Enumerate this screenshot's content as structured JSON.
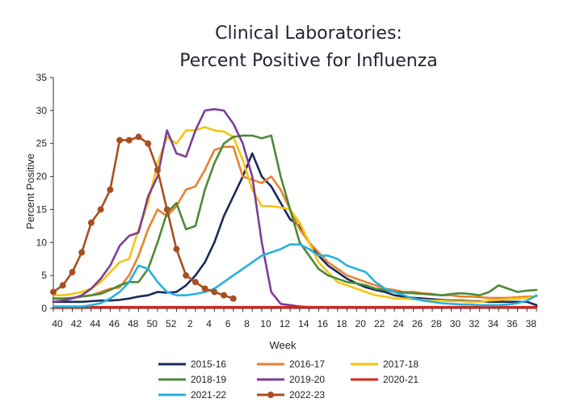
{
  "chart_data": {
    "type": "line",
    "title": [
      "Clinical Laboratories:",
      "Percent Positive for Influenza"
    ],
    "xlabel": "Week",
    "ylabel": "Percent Positive",
    "ylim": [
      0,
      35
    ],
    "yticks": [
      0,
      5,
      10,
      15,
      20,
      25,
      30,
      35
    ],
    "xtick_labels": [
      "40",
      "42",
      "44",
      "46",
      "48",
      "50",
      "52",
      "2",
      "4",
      "6",
      "8",
      "10",
      "12",
      "14",
      "16",
      "18",
      "20",
      "22",
      "24",
      "26",
      "28",
      "30",
      "32",
      "34",
      "36",
      "38"
    ],
    "grid": false,
    "legend_position": "bottom",
    "series": [
      {
        "name": "2015-16",
        "color": "#1a2a5c",
        "marker": false,
        "values": [
          1,
          1,
          1,
          1,
          1.1,
          1.2,
          1.2,
          1.3,
          1.5,
          1.8,
          2,
          2.5,
          2.4,
          2.5,
          3.5,
          5,
          7,
          10,
          14,
          17,
          20,
          23.5,
          20,
          18.5,
          16,
          13.5,
          12.5,
          10,
          8,
          6.5,
          5.5,
          4.5,
          3.8,
          3.2,
          2.8,
          2.5,
          2,
          1.8,
          1.6,
          1.5,
          1.4,
          1.3,
          1.2,
          1.2,
          1.1,
          1.1,
          1,
          1,
          1,
          1,
          1,
          0.5
        ]
      },
      {
        "name": "2016-17",
        "color": "#e9812f",
        "marker": false,
        "values": [
          1.5,
          1.5,
          1.6,
          1.8,
          2,
          2.5,
          3,
          3.2,
          5,
          8,
          12,
          15,
          14,
          15.5,
          18,
          18.5,
          21,
          24,
          24.5,
          24.5,
          20,
          19.5,
          19,
          20,
          18,
          15,
          12,
          10,
          8.5,
          7,
          6,
          5,
          4.5,
          4,
          3.5,
          3,
          2.8,
          2.5,
          2.5,
          2.3,
          2.2,
          2,
          2,
          1.8,
          1.8,
          1.7,
          1.6,
          1.6,
          1.6,
          1.7,
          1.8,
          1.8
        ]
      },
      {
        "name": "2017-18",
        "color": "#f5c411",
        "marker": false,
        "values": [
          2,
          2,
          2.2,
          2.5,
          3,
          4,
          5.5,
          7,
          7.5,
          12,
          16,
          22,
          26,
          25,
          27,
          27,
          27.5,
          27,
          26.8,
          26,
          22.5,
          18,
          15.5,
          15.5,
          15.3,
          15,
          13,
          10,
          7,
          5.5,
          4,
          3.5,
          3,
          2.5,
          2,
          1.8,
          1.5,
          1.5,
          1.4,
          1.3,
          1.2,
          1.2,
          1.1,
          1.1,
          1,
          1,
          1.2,
          1.3,
          1.4,
          1.5,
          1.6,
          1.8
        ]
      },
      {
        "name": "2018-19",
        "color": "#4c8a36",
        "marker": false,
        "values": [
          1.5,
          1.5,
          1.6,
          1.8,
          2,
          2.2,
          2.8,
          3.5,
          4,
          4,
          6,
          10,
          14.5,
          16,
          12,
          12.5,
          18,
          22,
          25,
          26,
          26.2,
          26.2,
          25.8,
          26.2,
          20,
          15,
          10,
          8,
          6,
          5,
          4.5,
          4,
          3.8,
          3.5,
          3,
          2.8,
          2.5,
          2.4,
          2.3,
          2.2,
          2.1,
          2,
          2.2,
          2.3,
          2.2,
          2,
          2.5,
          3.5,
          3,
          2.5,
          2.7,
          2.8
        ]
      },
      {
        "name": "2019-20",
        "color": "#7d3e96",
        "marker": false,
        "values": [
          1,
          1.2,
          1.5,
          2,
          3,
          4.5,
          6.5,
          9.5,
          11,
          11.5,
          17,
          20,
          27,
          23.5,
          23,
          27,
          30,
          30.2,
          30,
          28,
          25,
          20,
          10,
          2.5,
          0.7,
          0.5,
          0.3,
          0.2,
          0.2,
          0.2,
          0.2,
          0.2,
          0.2,
          0.2,
          0.2,
          0.2,
          0.2,
          0.2,
          0.2,
          0.2,
          0.2,
          0.2,
          0.2,
          0.2,
          0.2,
          0.2,
          0.2,
          0.2,
          0.2,
          0.2,
          0.2,
          0.2
        ]
      },
      {
        "name": "2020-21",
        "color": "#d8261f",
        "marker": false,
        "values": [
          0.2,
          0.2,
          0.2,
          0.2,
          0.2,
          0.2,
          0.2,
          0.2,
          0.2,
          0.2,
          0.2,
          0.2,
          0.2,
          0.2,
          0.2,
          0.2,
          0.2,
          0.2,
          0.2,
          0.2,
          0.2,
          0.2,
          0.2,
          0.2,
          0.2,
          0.2,
          0.2,
          0.2,
          0.2,
          0.2,
          0.2,
          0.2,
          0.2,
          0.2,
          0.2,
          0.2,
          0.2,
          0.2,
          0.2,
          0.2,
          0.2,
          0.2,
          0.2,
          0.2,
          0.2,
          0.2,
          0.2,
          0.2,
          0.2,
          0.2,
          0.2,
          0.2
        ]
      },
      {
        "name": "2021-22",
        "color": "#29b0df",
        "marker": false,
        "values": [
          0.3,
          0.3,
          0.3,
          0.3,
          0.5,
          0.8,
          1.5,
          2.5,
          4,
          6.5,
          6,
          4,
          2.5,
          2,
          2,
          2.2,
          2.5,
          3,
          4,
          5,
          6,
          7,
          8,
          8.5,
          9,
          9.7,
          9.7,
          9,
          8,
          8,
          7.5,
          6.5,
          6,
          5.5,
          4,
          3,
          2.5,
          2,
          1.5,
          1.2,
          1,
          0.8,
          0.7,
          0.6,
          0.6,
          0.5,
          0.5,
          0.5,
          0.6,
          0.8,
          1.2,
          2
        ]
      },
      {
        "name": "2022-23",
        "color": "#a84f22",
        "marker": true,
        "values": [
          2.5,
          3.5,
          5.5,
          8.5,
          13,
          15,
          18,
          25.5,
          25.5,
          26,
          25,
          21,
          15,
          9,
          5,
          4,
          3,
          2.5,
          2,
          1.5
        ]
      }
    ]
  }
}
